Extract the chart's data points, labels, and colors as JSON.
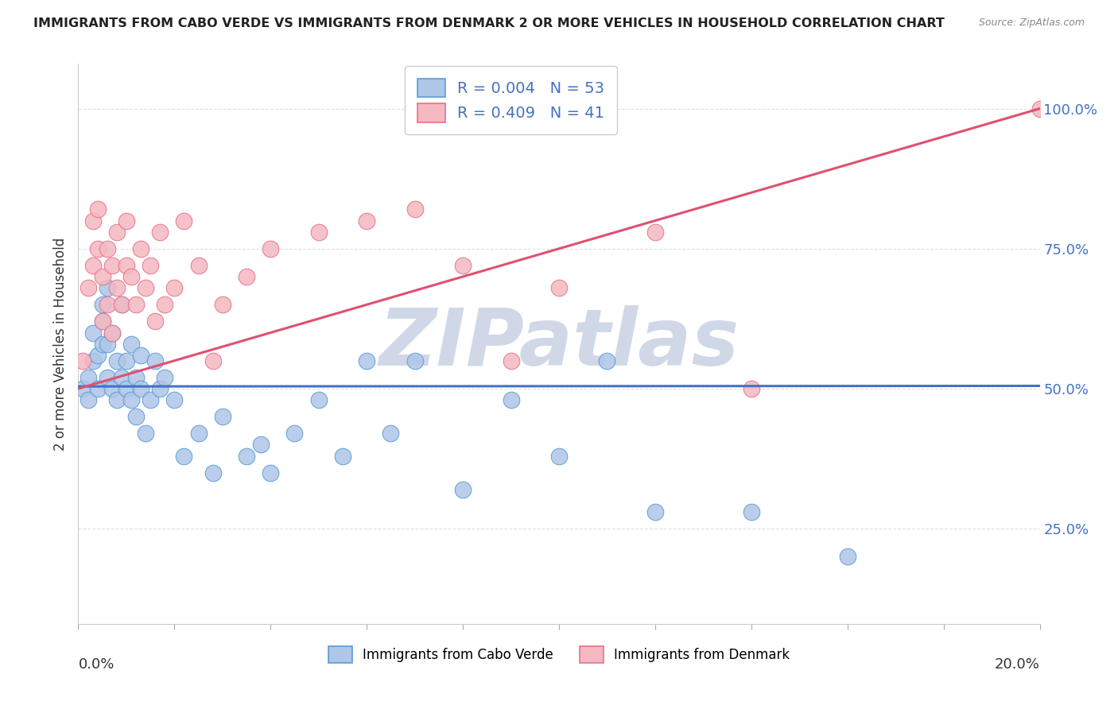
{
  "title": "IMMIGRANTS FROM CABO VERDE VS IMMIGRANTS FROM DENMARK 2 OR MORE VEHICLES IN HOUSEHOLD CORRELATION CHART",
  "source": "Source: ZipAtlas.com",
  "ylabel": "2 or more Vehicles in Household",
  "ytick_labels": [
    "25.0%",
    "50.0%",
    "75.0%",
    "100.0%"
  ],
  "ytick_values": [
    0.25,
    0.5,
    0.75,
    1.0
  ],
  "xlim": [
    0.0,
    0.2
  ],
  "ylim": [
    0.08,
    1.08
  ],
  "legend_r1": "R = 0.004",
  "legend_n1": "N = 53",
  "legend_r2": "R = 0.409",
  "legend_n2": "N = 41",
  "cabo_verde_color": "#aec6e8",
  "denmark_color": "#f4b8c1",
  "cabo_verde_edge_color": "#5b9bd5",
  "denmark_edge_color": "#e8718a",
  "cabo_verde_line_color": "#4472c4",
  "denmark_line_color": "#e05070",
  "cabo_verde_x": [
    0.001,
    0.002,
    0.002,
    0.003,
    0.003,
    0.004,
    0.004,
    0.005,
    0.005,
    0.005,
    0.006,
    0.006,
    0.006,
    0.007,
    0.007,
    0.008,
    0.008,
    0.009,
    0.009,
    0.01,
    0.01,
    0.011,
    0.011,
    0.012,
    0.012,
    0.013,
    0.013,
    0.014,
    0.015,
    0.016,
    0.017,
    0.018,
    0.02,
    0.022,
    0.025,
    0.028,
    0.03,
    0.035,
    0.038,
    0.04,
    0.045,
    0.05,
    0.055,
    0.06,
    0.065,
    0.07,
    0.08,
    0.09,
    0.1,
    0.11,
    0.12,
    0.14,
    0.16
  ],
  "cabo_verde_y": [
    0.5,
    0.48,
    0.52,
    0.55,
    0.6,
    0.5,
    0.56,
    0.62,
    0.58,
    0.65,
    0.52,
    0.58,
    0.68,
    0.5,
    0.6,
    0.55,
    0.48,
    0.52,
    0.65,
    0.5,
    0.55,
    0.48,
    0.58,
    0.52,
    0.45,
    0.5,
    0.56,
    0.42,
    0.48,
    0.55,
    0.5,
    0.52,
    0.48,
    0.38,
    0.42,
    0.35,
    0.45,
    0.38,
    0.4,
    0.35,
    0.42,
    0.48,
    0.38,
    0.55,
    0.42,
    0.55,
    0.32,
    0.48,
    0.38,
    0.55,
    0.28,
    0.28,
    0.2
  ],
  "denmark_x": [
    0.001,
    0.002,
    0.003,
    0.003,
    0.004,
    0.004,
    0.005,
    0.005,
    0.006,
    0.006,
    0.007,
    0.007,
    0.008,
    0.008,
    0.009,
    0.01,
    0.01,
    0.011,
    0.012,
    0.013,
    0.014,
    0.015,
    0.016,
    0.017,
    0.018,
    0.02,
    0.022,
    0.025,
    0.028,
    0.03,
    0.035,
    0.04,
    0.05,
    0.06,
    0.07,
    0.08,
    0.09,
    0.1,
    0.12,
    0.14,
    0.2
  ],
  "denmark_y": [
    0.55,
    0.68,
    0.72,
    0.8,
    0.75,
    0.82,
    0.7,
    0.62,
    0.65,
    0.75,
    0.72,
    0.6,
    0.68,
    0.78,
    0.65,
    0.72,
    0.8,
    0.7,
    0.65,
    0.75,
    0.68,
    0.72,
    0.62,
    0.78,
    0.65,
    0.68,
    0.8,
    0.72,
    0.55,
    0.65,
    0.7,
    0.75,
    0.78,
    0.8,
    0.82,
    0.72,
    0.55,
    0.68,
    0.78,
    0.5,
    1.0
  ],
  "cabo_verde_trend": [
    0.0,
    0.2,
    0.504,
    0.505
  ],
  "denmark_trend": [
    0.0,
    0.2,
    0.5,
    1.0
  ],
  "watermark": "ZIPatlas",
  "watermark_color": "#d0d8e8",
  "background_color": "#ffffff",
  "grid_color": "#e0e0e0"
}
